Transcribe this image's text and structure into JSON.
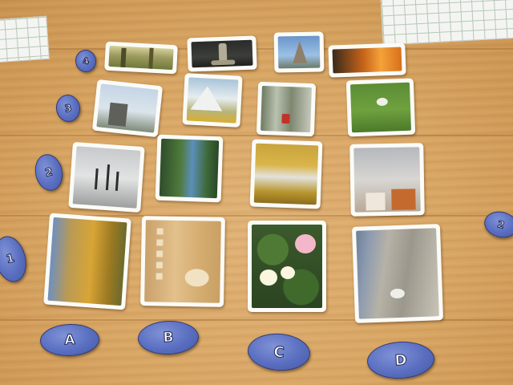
{
  "rows": [
    {
      "label": "4",
      "cards": [
        {
          "scene": "meadow-trees"
        },
        {
          "scene": "dark-fountain"
        },
        {
          "scene": "blue-monument"
        },
        {
          "scene": "sunset-glow"
        }
      ]
    },
    {
      "label": "3",
      "cards": [
        {
          "scene": "pale-building"
        },
        {
          "scene": "mountain-autumn"
        },
        {
          "scene": "forest-red-object"
        },
        {
          "scene": "green-field-sheep"
        }
      ]
    },
    {
      "label": "2",
      "cards": [
        {
          "scene": "grey-sky-posts"
        },
        {
          "scene": "blue-lake-trees"
        },
        {
          "scene": "yellow-autumn-mist"
        },
        {
          "scene": "snow-cabin"
        }
      ]
    },
    {
      "label": "1",
      "cards": [
        {
          "scene": "golden-field"
        },
        {
          "scene": "wood-closeup"
        },
        {
          "scene": "water-lilies"
        },
        {
          "scene": "rock-cliff"
        }
      ]
    }
  ],
  "columns": [
    "A",
    "B",
    "C",
    "D"
  ],
  "extra_token_label": "2",
  "colors": {
    "token_blue": "#5a6ec1",
    "table_wood": "#d7a462",
    "card_border": "#fbfbf7"
  }
}
